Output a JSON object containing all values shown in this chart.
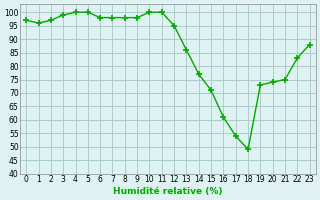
{
  "x": [
    0,
    1,
    2,
    3,
    4,
    5,
    6,
    7,
    8,
    9,
    10,
    11,
    12,
    13,
    14,
    15,
    16,
    17,
    18,
    19,
    20,
    21,
    22,
    23
  ],
  "y": [
    97,
    96,
    97,
    99,
    100,
    100,
    98,
    98,
    98,
    98,
    100,
    100,
    95,
    86,
    77,
    71,
    61,
    54,
    49,
    73,
    74,
    75,
    83,
    88
  ],
  "line_color": "#00aa00",
  "marker_color": "#00aa00",
  "bg_color": "#dff2f2",
  "grid_color": "#aacccc",
  "xlabel": "Humidité relative (%)",
  "xlabel_color": "#00aa00",
  "ylim": [
    40,
    103
  ],
  "xlim": [
    -0.5,
    23.5
  ],
  "yticks": [
    40,
    45,
    50,
    55,
    60,
    65,
    70,
    75,
    80,
    85,
    90,
    95,
    100
  ],
  "xticks": [
    0,
    1,
    2,
    3,
    4,
    5,
    6,
    7,
    8,
    9,
    10,
    11,
    12,
    13,
    14,
    15,
    16,
    17,
    18,
    19,
    20,
    21,
    22,
    23
  ]
}
